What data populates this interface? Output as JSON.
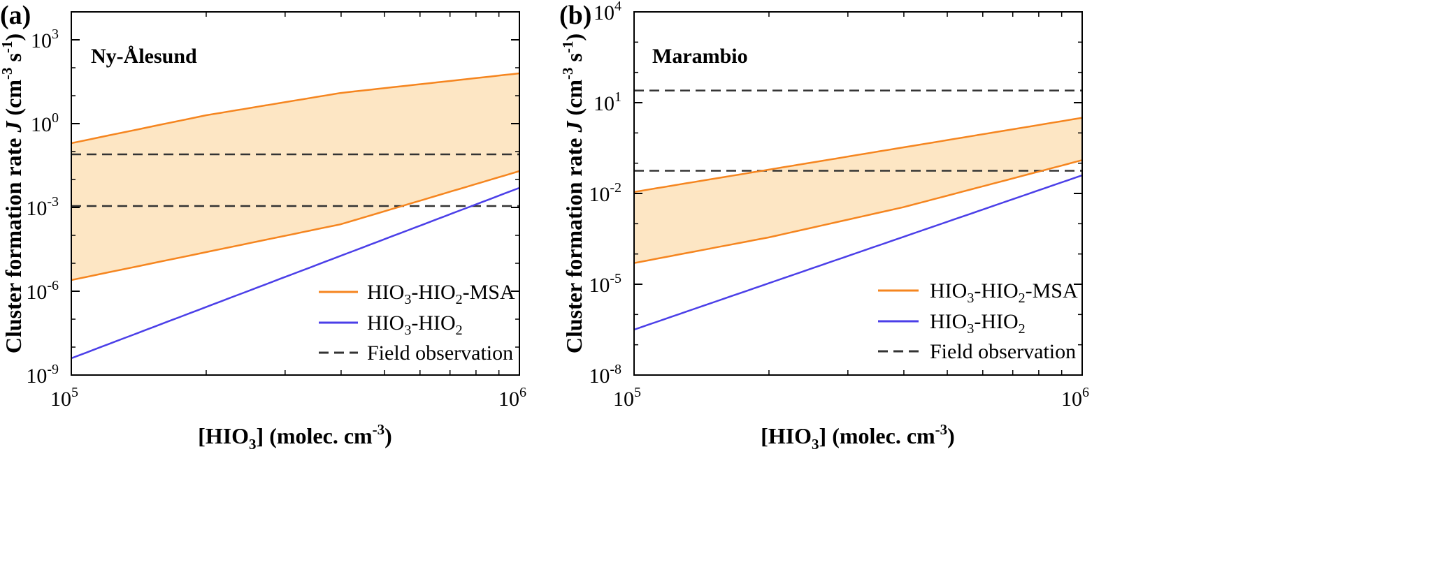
{
  "colors": {
    "msa_line": "#f5851f",
    "hio2_line": "#4b3fe8",
    "band_fill": "#fde6c4",
    "field_obs": "#333333"
  },
  "chart_data": [
    {
      "type": "line",
      "panel_label": "(a)",
      "site": "Ny-Ålesund",
      "xlabel": "[HIO3] (molec. cm-3)",
      "ylabel": "Cluster formation rate J (cm-3 s-1)",
      "xscale": "log",
      "yscale": "log",
      "xlim": [
        100000,
        1000000
      ],
      "ylim_log10": [
        -9,
        4
      ],
      "x_ticks": [
        {
          "base": "10",
          "exp": "5",
          "value": 100000
        },
        {
          "base": "10",
          "exp": "6",
          "value": 1000000
        }
      ],
      "y_ticks": [
        {
          "base": "10",
          "exp": "-9",
          "log10": -9
        },
        {
          "base": "10",
          "exp": "-6",
          "log10": -6
        },
        {
          "base": "10",
          "exp": "-3",
          "log10": -3
        },
        {
          "base": "10",
          "exp": "0",
          "log10": 0
        },
        {
          "base": "10",
          "exp": "3",
          "log10": 3
        }
      ],
      "y_minor_log10": [
        -8,
        -7,
        -5,
        -4,
        -2,
        -1,
        1,
        2
      ],
      "series": [
        {
          "name": "HIO3-HIO2-MSA upper",
          "color_key": "msa_line",
          "x": [
            100000,
            200000,
            400000,
            1000000
          ],
          "log10_y": [
            -0.7,
            0.3,
            1.1,
            1.8
          ]
        },
        {
          "name": "HIO3-HIO2-MSA lower",
          "color_key": "msa_line",
          "x": [
            100000,
            200000,
            400000,
            1000000
          ],
          "log10_y": [
            -5.6,
            -4.6,
            -3.6,
            -1.7
          ]
        },
        {
          "name": "HIO3-HIO2",
          "color_key": "hio2_line",
          "x": [
            100000,
            1000000
          ],
          "log10_y": [
            -8.4,
            -2.3
          ]
        }
      ],
      "band_between": [
        "HIO3-HIO2-MSA upper",
        "HIO3-HIO2-MSA lower"
      ],
      "field_observation_log10": [
        -1.1,
        -2.95
      ],
      "legend": [
        {
          "label_parts": [
            "HIO",
            "3",
            "-HIO",
            "2",
            "-MSA"
          ],
          "style": "solid",
          "color_key": "msa_line"
        },
        {
          "label_parts": [
            "HIO",
            "3",
            "-HIO",
            "2",
            ""
          ],
          "style": "solid",
          "color_key": "hio2_line"
        },
        {
          "label_parts": [
            "Field observation",
            "",
            "",
            "",
            ""
          ],
          "style": "dashed",
          "color_key": "field_obs"
        }
      ],
      "legend_position": "bottom-right"
    },
    {
      "type": "line",
      "panel_label": "(b)",
      "site": "Marambio",
      "xlabel": "[HIO3] (molec. cm-3)",
      "ylabel": "Cluster formation rate J (cm-3 s-1)",
      "xscale": "log",
      "yscale": "log",
      "xlim": [
        100000,
        1000000
      ],
      "ylim_log10": [
        -8,
        4
      ],
      "x_ticks": [
        {
          "base": "10",
          "exp": "5",
          "value": 100000
        },
        {
          "base": "10",
          "exp": "6",
          "value": 1000000
        }
      ],
      "y_ticks": [
        {
          "base": "10",
          "exp": "-8",
          "log10": -8
        },
        {
          "base": "10",
          "exp": "-5",
          "log10": -5
        },
        {
          "base": "10",
          "exp": "-2",
          "log10": -2
        },
        {
          "base": "10",
          "exp": "1",
          "log10": 1
        },
        {
          "base": "10",
          "exp": "4",
          "log10": 4
        }
      ],
      "y_minor_log10": [
        -7,
        -6,
        -4,
        -3,
        -1,
        0,
        2,
        3
      ],
      "series": [
        {
          "name": "HIO3-HIO2-MSA upper",
          "color_key": "msa_line",
          "x": [
            100000,
            1000000
          ],
          "log10_y": [
            -1.95,
            0.5
          ]
        },
        {
          "name": "HIO3-HIO2-MSA lower",
          "color_key": "msa_line",
          "x": [
            100000,
            200000,
            400000,
            1000000
          ],
          "log10_y": [
            -4.3,
            -3.45,
            -2.45,
            -0.9
          ]
        },
        {
          "name": "HIO3-HIO2",
          "color_key": "hio2_line",
          "x": [
            100000,
            1000000
          ],
          "log10_y": [
            -6.5,
            -1.4
          ]
        }
      ],
      "band_between": [
        "HIO3-HIO2-MSA upper",
        "HIO3-HIO2-MSA lower"
      ],
      "field_observation_log10": [
        1.4,
        -1.25
      ],
      "legend": [
        {
          "label_parts": [
            "HIO",
            "3",
            "-HIO",
            "2",
            "-MSA"
          ],
          "style": "solid",
          "color_key": "msa_line"
        },
        {
          "label_parts": [
            "HIO",
            "3",
            "-HIO",
            "2",
            ""
          ],
          "style": "solid",
          "color_key": "hio2_line"
        },
        {
          "label_parts": [
            "Field observation",
            "",
            "",
            "",
            ""
          ],
          "style": "dashed",
          "color_key": "field_obs"
        }
      ],
      "legend_position": "bottom-right"
    }
  ],
  "axis_text": {
    "x_title_parts": [
      "[HIO",
      "3",
      "] (molec. cm",
      "-3",
      ")"
    ],
    "y_title_parts": [
      "Cluster formation rate ",
      "J",
      " (cm",
      "-3",
      " s",
      "-1",
      ")"
    ]
  }
}
